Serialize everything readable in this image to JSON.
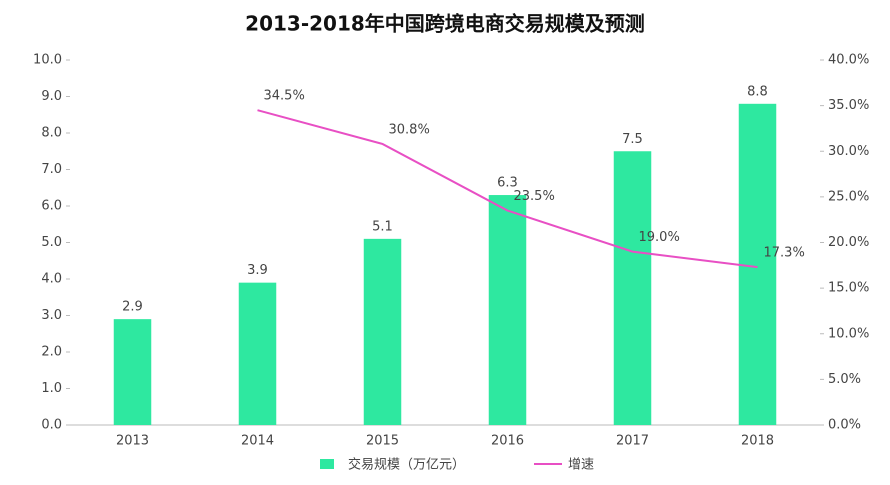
{
  "chart_data": {
    "type": "bar-line",
    "title": "2013-2018年中国跨境电商交易规模及预测",
    "categories": [
      "2013",
      "2014",
      "2015",
      "2016",
      "2017",
      "2018"
    ],
    "series": [
      {
        "name": "交易规模（万亿元）",
        "color": "#2ee8a0",
        "type": "bar",
        "values": [
          2.9,
          3.9,
          5.1,
          6.3,
          7.5,
          8.8
        ]
      },
      {
        "name": "增速",
        "color": "#e84fc4",
        "type": "line",
        "axis": "y2",
        "values": [
          null,
          34.5,
          30.8,
          23.5,
          19.0,
          17.3
        ],
        "value_labels": [
          null,
          "34.5%",
          "30.8%",
          "23.5%",
          "19.0%",
          "17.3%"
        ]
      }
    ],
    "ylim": [
      0,
      10
    ],
    "yticks": [
      {
        "value": 0,
        "label": "0.0"
      },
      {
        "value": 1,
        "label": "1.0"
      },
      {
        "value": 2,
        "label": "2.0"
      },
      {
        "value": 3,
        "label": "3.0"
      },
      {
        "value": 4,
        "label": "4.0"
      },
      {
        "value": 5,
        "label": "5.0"
      },
      {
        "value": 6,
        "label": "6.0"
      },
      {
        "value": 7,
        "label": "7.0"
      },
      {
        "value": 8,
        "label": "8.0"
      },
      {
        "value": 9,
        "label": "9.0"
      },
      {
        "value": 10,
        "label": "10.0"
      }
    ],
    "y2lim": [
      0,
      40
    ],
    "y2ticks": [
      {
        "value": 0,
        "label": "0.0%"
      },
      {
        "value": 5,
        "label": "5.0%"
      },
      {
        "value": 10,
        "label": "10.0%"
      },
      {
        "value": 15,
        "label": "15.0%"
      },
      {
        "value": 20,
        "label": "20.0%"
      },
      {
        "value": 25,
        "label": "25.0%"
      },
      {
        "value": 30,
        "label": "30.0%"
      },
      {
        "value": 35,
        "label": "35.0%"
      },
      {
        "value": 40,
        "label": "40.0%"
      }
    ]
  }
}
